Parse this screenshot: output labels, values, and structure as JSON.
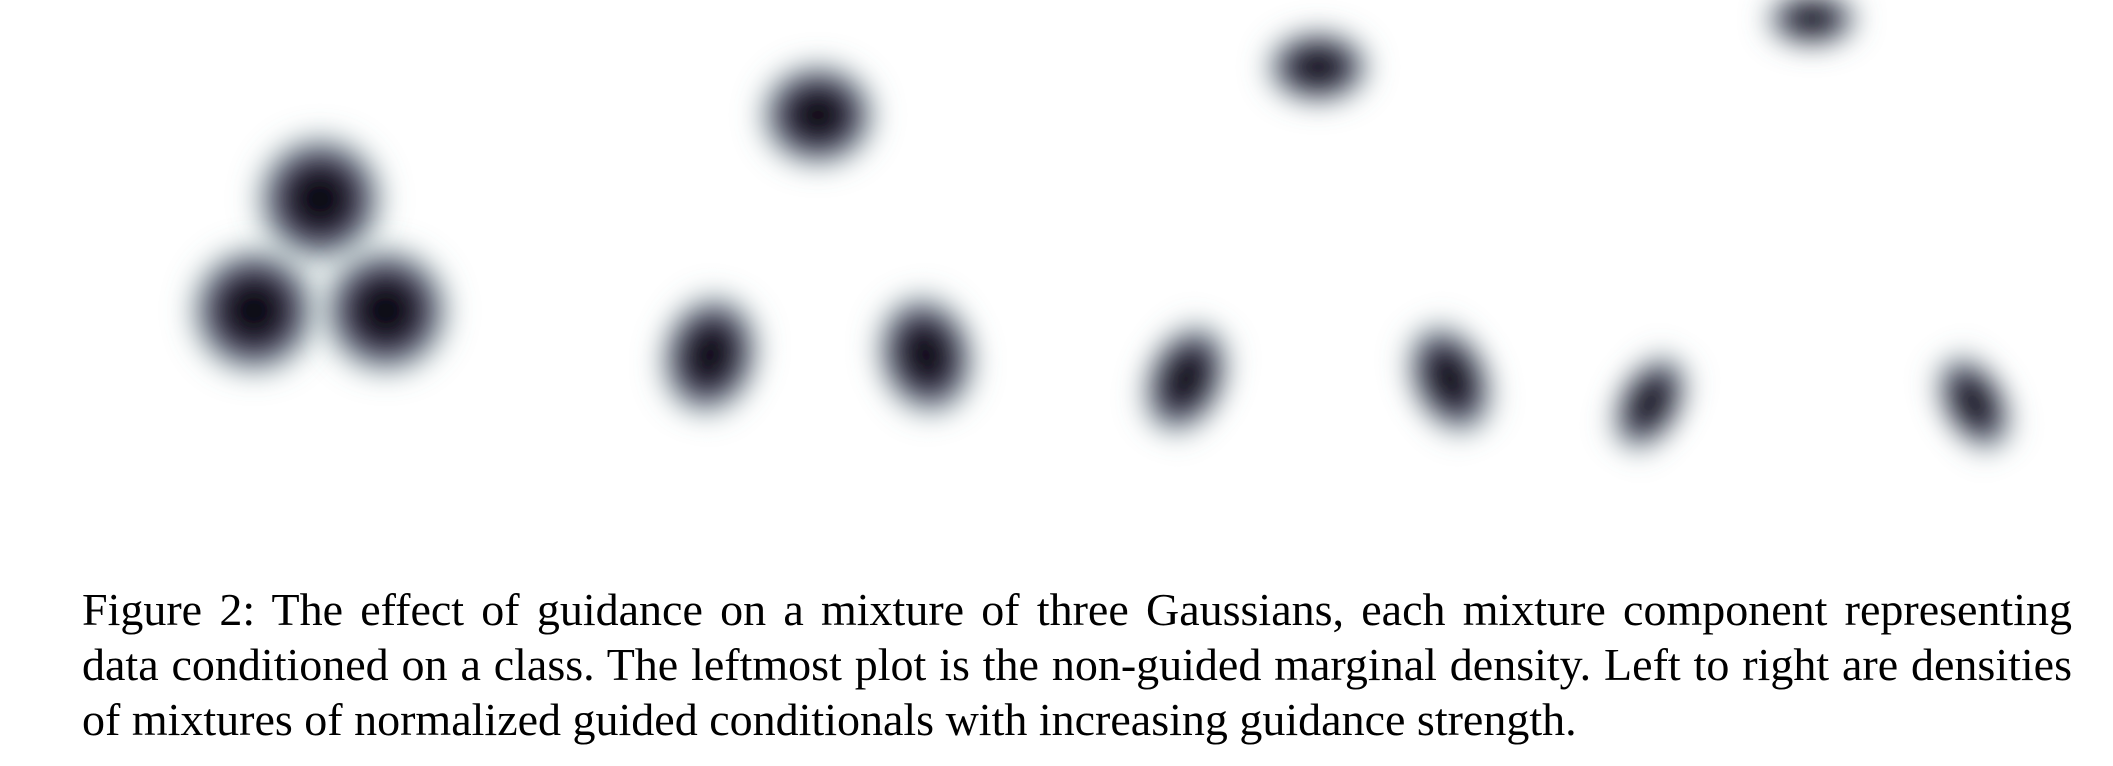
{
  "figure": {
    "colors": {
      "background": "#ffffff",
      "edge": "#5a8f8a",
      "mid": "#5a4f73",
      "core": "#0a0712"
    },
    "panels": [
      {
        "label": "",
        "components": [
          {
            "x": 0.0,
            "y": 0.55,
            "sx": 0.42,
            "sy": 0.42,
            "rho": 0.0
          },
          {
            "x": -0.55,
            "y": -0.38,
            "sx": 0.42,
            "sy": 0.42,
            "rho": 0.0
          },
          {
            "x": 0.55,
            "y": -0.38,
            "sx": 0.42,
            "sy": 0.42,
            "rho": 0.0
          }
        ]
      },
      {
        "label": "",
        "components": [
          {
            "x": 0.0,
            "y": 1.25,
            "sx": 0.38,
            "sy": 0.34,
            "rho": 0.0
          },
          {
            "x": -0.9,
            "y": -0.75,
            "sx": 0.32,
            "sy": 0.4,
            "rho": 0.25
          },
          {
            "x": 0.9,
            "y": -0.75,
            "sx": 0.32,
            "sy": 0.4,
            "rho": -0.25
          }
        ]
      },
      {
        "label": "",
        "components": [
          {
            "x": 0.0,
            "y": 1.65,
            "sx": 0.34,
            "sy": 0.24,
            "rho": 0.0
          },
          {
            "x": -1.1,
            "y": -0.95,
            "sx": 0.26,
            "sy": 0.38,
            "rho": 0.45
          },
          {
            "x": 1.1,
            "y": -0.95,
            "sx": 0.26,
            "sy": 0.38,
            "rho": -0.45
          }
        ]
      },
      {
        "label": "",
        "components": [
          {
            "x": 0.0,
            "y": 2.05,
            "sx": 0.3,
            "sy": 0.18,
            "rho": 0.0
          },
          {
            "x": -1.35,
            "y": -1.15,
            "sx": 0.21,
            "sy": 0.34,
            "rho": 0.55
          },
          {
            "x": 1.35,
            "y": -1.15,
            "sx": 0.21,
            "sy": 0.34,
            "rho": -0.55
          }
        ]
      }
    ]
  },
  "caption": "Figure 2: The effect of guidance on a mixture of three Gaussians, each mixture component representing data conditioned on a class. The leftmost plot is the non-guided marginal density. Left to right are densities of mixtures of normalized guided conditionals with increasing guidance strength."
}
